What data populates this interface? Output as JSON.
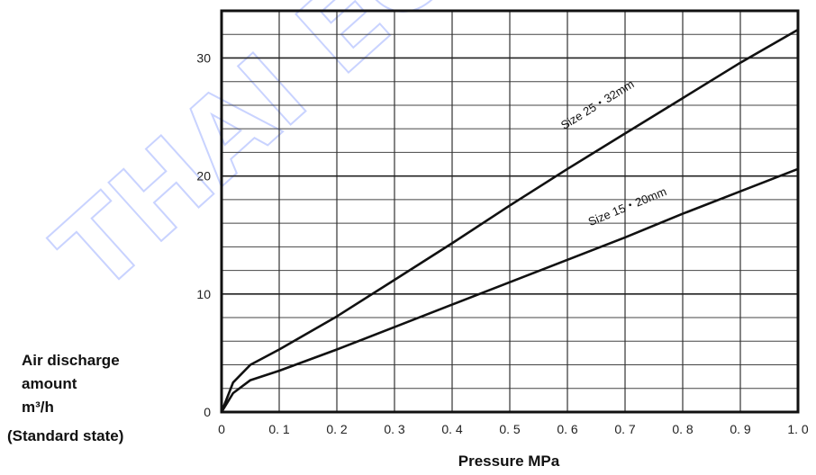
{
  "watermark": "THAI EC",
  "chart_data": {
    "type": "line",
    "xlabel": "Pressure MPa",
    "ylabel_lines": [
      "Air discharge",
      "amount",
      "m³/h",
      "(Standard state)"
    ],
    "xlim": [
      0,
      1.0
    ],
    "ylim": [
      0,
      34
    ],
    "x_ticks": [
      0,
      0.1,
      0.2,
      0.3,
      0.4,
      0.5,
      0.6,
      0.7,
      0.8,
      0.9,
      1.0
    ],
    "x_tick_labels": [
      "0",
      "0. 1",
      "0. 2",
      "0. 3",
      "0. 4",
      "0. 5",
      "0. 6",
      "0. 7",
      "0. 8",
      "0. 9",
      "1. 0"
    ],
    "y_ticks": [
      0,
      10,
      20,
      30
    ],
    "y_tick_labels": [
      "0",
      "10",
      "20",
      "30"
    ],
    "grid": true,
    "series": [
      {
        "name": "Size 25・32mm",
        "x": [
          0,
          0.02,
          0.05,
          0.1,
          0.2,
          0.3,
          0.4,
          0.5,
          0.6,
          0.7,
          0.8,
          0.9,
          1.0
        ],
        "y": [
          0,
          2.5,
          4.0,
          5.3,
          8.1,
          11.2,
          14.3,
          17.5,
          20.6,
          23.6,
          26.6,
          29.6,
          32.4
        ],
        "label_at_x": 0.68,
        "label_offset": [
          -55,
          -12
        ]
      },
      {
        "name": "Size 15・20mm",
        "x": [
          0,
          0.02,
          0.05,
          0.1,
          0.2,
          0.3,
          0.4,
          0.5,
          0.6,
          0.7,
          0.8,
          0.9,
          1.0
        ],
        "y": [
          0,
          1.6,
          2.7,
          3.5,
          5.3,
          7.2,
          9.1,
          11.0,
          12.9,
          14.8,
          16.8,
          18.7,
          20.6
        ],
        "label_at_x": 0.71,
        "label_offset": [
          -45,
          -10
        ]
      }
    ]
  }
}
